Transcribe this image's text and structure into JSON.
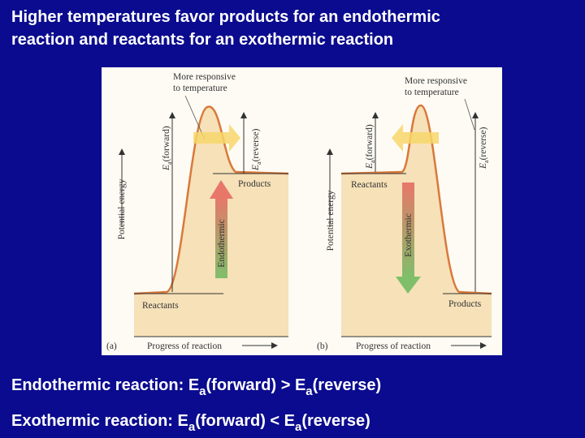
{
  "header": {
    "title_lines": [
      "Higher temperatures favor products for an endothermic",
      "reaction and reactants for an exothermic reaction"
    ]
  },
  "panels": [
    {
      "tag": "(a)",
      "note_lines": [
        "More responsive",
        "to temperature"
      ],
      "ea_forward": [
        "E",
        "a",
        "(forward)"
      ],
      "ea_reverse": [
        "E",
        "a",
        "(reverse)"
      ],
      "high_level": "Products",
      "low_level": "Reactants",
      "y_axis": "Potential energy",
      "x_axis": "Progress of reaction",
      "arrow_label": "Endothermic"
    },
    {
      "tag": "(b)",
      "note_lines": [
        "More responsive",
        "to temperature"
      ],
      "ea_forward": [
        "E",
        "a",
        "(forward)"
      ],
      "ea_reverse": [
        "E",
        "a",
        "(reverse)"
      ],
      "high_level": "Reactants",
      "low_level": "Products",
      "y_axis": "Potential energy",
      "x_axis": "Progress of reaction",
      "arrow_label": "Exothermic"
    }
  ],
  "captions": [
    [
      "Endothermic reaction: E",
      "a",
      "(forward) > E",
      "a",
      "(reverse)"
    ],
    [
      "Exothermic reaction: E",
      "a",
      "(forward) < E",
      "a",
      "(reverse)"
    ]
  ]
}
